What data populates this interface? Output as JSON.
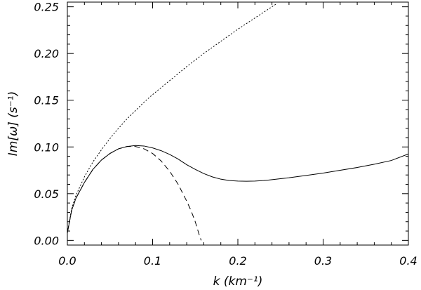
{
  "chart_data": {
    "type": "line",
    "title": "",
    "xlabel": "k (km⁻¹)",
    "ylabel": "Im[ω] (s⁻¹)",
    "xlim": [
      0,
      0.4
    ],
    "ylim": [
      -0.005,
      0.255
    ],
    "grid": false,
    "xticks": [
      "0.0",
      "0.1",
      "0.2",
      "0.3",
      "0.4"
    ],
    "yticks": [
      "0.00",
      "0.05",
      "0.10",
      "0.15",
      "0.20",
      "0.25"
    ],
    "series": [
      {
        "style": "solid",
        "x": [
          0.0,
          0.005,
          0.01,
          0.02,
          0.03,
          0.04,
          0.05,
          0.06,
          0.07,
          0.08,
          0.09,
          0.1,
          0.11,
          0.12,
          0.13,
          0.14,
          0.15,
          0.16,
          0.17,
          0.18,
          0.19,
          0.2,
          0.21,
          0.22,
          0.23,
          0.24,
          0.25,
          0.26,
          0.28,
          0.3,
          0.32,
          0.34,
          0.36,
          0.38,
          0.4
        ],
        "y": [
          0.008,
          0.032,
          0.045,
          0.062,
          0.076,
          0.086,
          0.093,
          0.098,
          0.1005,
          0.1015,
          0.101,
          0.099,
          0.096,
          0.092,
          0.087,
          0.081,
          0.076,
          0.0715,
          0.068,
          0.0655,
          0.064,
          0.0635,
          0.0633,
          0.0635,
          0.064,
          0.065,
          0.066,
          0.067,
          0.0695,
          0.072,
          0.075,
          0.078,
          0.0815,
          0.0855,
          0.0925
        ]
      },
      {
        "style": "dashed",
        "x": [
          0.0,
          0.005,
          0.01,
          0.02,
          0.03,
          0.04,
          0.05,
          0.06,
          0.07,
          0.08,
          0.09,
          0.1,
          0.11,
          0.12,
          0.13,
          0.14,
          0.145,
          0.15,
          0.153,
          0.155,
          0.157
        ],
        "y": [
          0.008,
          0.032,
          0.045,
          0.062,
          0.076,
          0.086,
          0.093,
          0.098,
          0.1005,
          0.1005,
          0.098,
          0.093,
          0.085,
          0.074,
          0.06,
          0.042,
          0.032,
          0.02,
          0.011,
          0.005,
          0.0
        ]
      },
      {
        "style": "dotted",
        "x": [
          0.0,
          0.005,
          0.01,
          0.02,
          0.03,
          0.04,
          0.05,
          0.06,
          0.07,
          0.08,
          0.09,
          0.1,
          0.12,
          0.14,
          0.16,
          0.18,
          0.2,
          0.22,
          0.24,
          0.245
        ],
        "y": [
          0.008,
          0.034,
          0.048,
          0.068,
          0.084,
          0.097,
          0.109,
          0.12,
          0.13,
          0.139,
          0.148,
          0.156,
          0.171,
          0.186,
          0.2,
          0.213,
          0.226,
          0.238,
          0.25,
          0.253
        ]
      }
    ]
  }
}
